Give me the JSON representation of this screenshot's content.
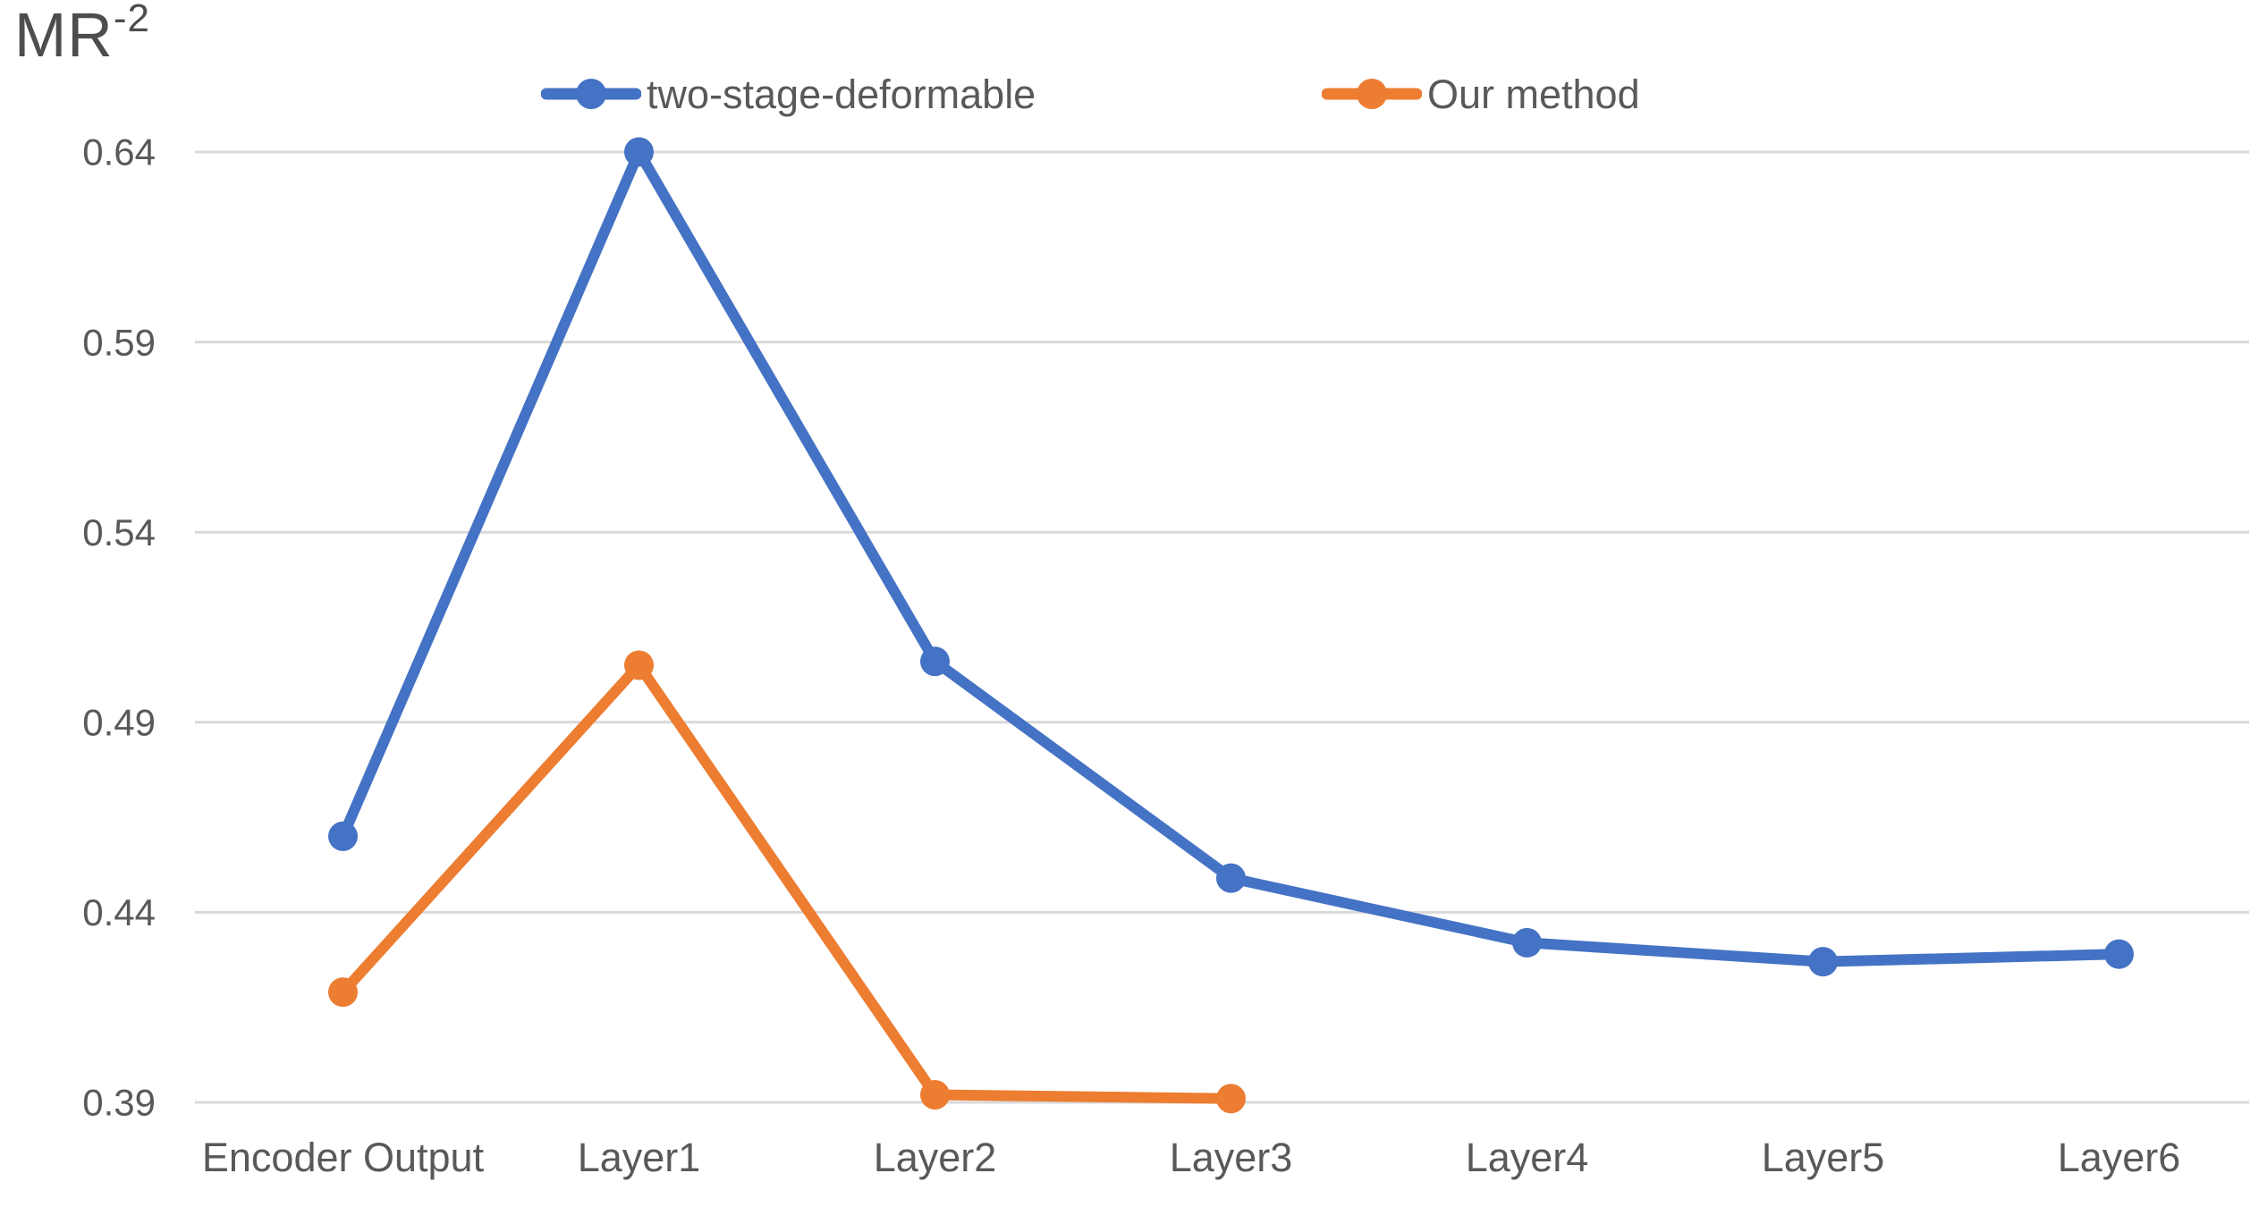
{
  "chart_data": {
    "type": "line",
    "title": "",
    "ylabel_base": "MR",
    "ylabel_exponent": "-2",
    "xlabel": "",
    "categories": [
      "Encoder Output",
      "Layer1",
      "Layer2",
      "Layer3",
      "Layer4",
      "Layer5",
      "Layer6"
    ],
    "series": [
      {
        "name": "two-stage-deformable",
        "color": "#4472C4",
        "values": [
          0.46,
          0.64,
          0.506,
          0.449,
          0.432,
          0.427,
          0.429
        ]
      },
      {
        "name": "Our method",
        "color": "#ED7D31",
        "values": [
          0.419,
          0.505,
          0.392,
          0.391,
          null,
          null,
          null
        ]
      }
    ],
    "yticks": [
      0.39,
      0.44,
      0.49,
      0.54,
      0.59,
      0.64
    ],
    "ylim": [
      0.39,
      0.64
    ],
    "grid": "horizontal",
    "legend_position": "top"
  },
  "colors": {
    "gridline": "#D9D9D9",
    "axis_text": "#595959",
    "title_text": "#4D4D4D"
  }
}
